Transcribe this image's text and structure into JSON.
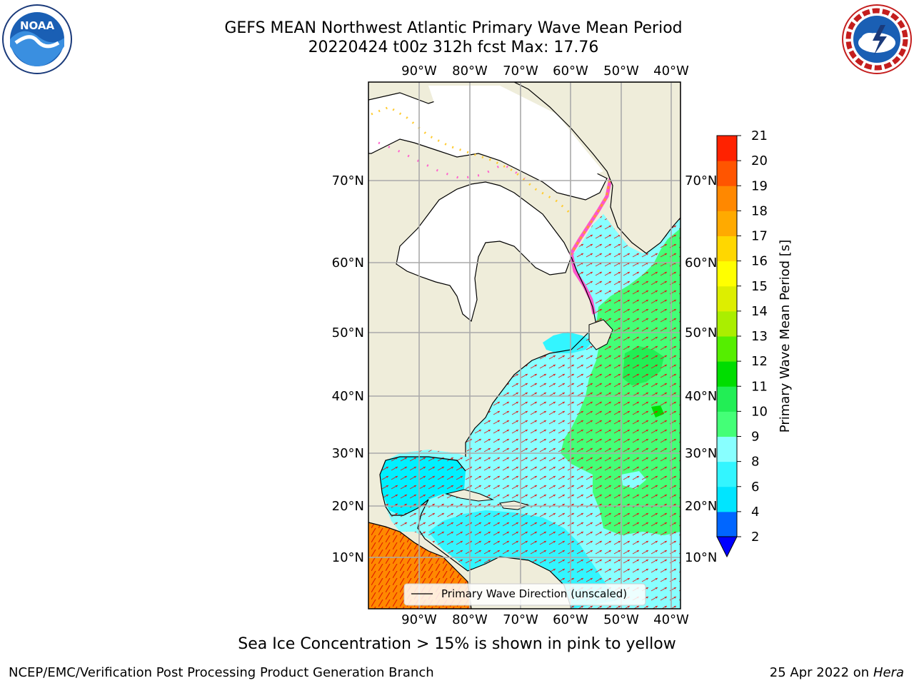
{
  "title_line1": "GEFS MEAN Northwest Atlantic Primary Wave Mean Period",
  "title_line2": "20220424 t00z 312h fcst   Max: 17.76",
  "logos": {
    "left": "noaa-logo",
    "left_text": "NOAA",
    "right": "nws-logo"
  },
  "map": {
    "lon_labels": [
      "90°W",
      "80°W",
      "70°W",
      "60°W",
      "50°W",
      "40°W"
    ],
    "lat_labels": [
      "70°N",
      "60°N",
      "50°N",
      "40°N",
      "30°N",
      "20°N",
      "10°N"
    ],
    "legend_label": "Primary Wave Direction (unscaled)"
  },
  "colorbar": {
    "label": "Primary Wave Mean Period [s]",
    "ticks": [
      "2",
      "4",
      "6",
      "8",
      "9",
      "10",
      "11",
      "12",
      "13",
      "14",
      "15",
      "16",
      "17",
      "18",
      "19",
      "20",
      "21"
    ],
    "colors": [
      "#0066ff",
      "#00e5ff",
      "#33f5ff",
      "#88ffff",
      "#44ff77",
      "#22ee55",
      "#00dd00",
      "#55ee00",
      "#aaee00",
      "#ddee00",
      "#ffff00",
      "#ffd700",
      "#ffaa00",
      "#ff8800",
      "#ff5500",
      "#ff2200",
      "#ff0000"
    ],
    "extend_color": "#0000ff"
  },
  "caption": "Sea Ice Concentration > 15% is shown in pink to yellow",
  "footer_left": "NCEP/EMC/Verification Post Processing Product Generation Branch",
  "footer_right_date": "25 Apr 2022 on",
  "footer_right_host": "Hera"
}
